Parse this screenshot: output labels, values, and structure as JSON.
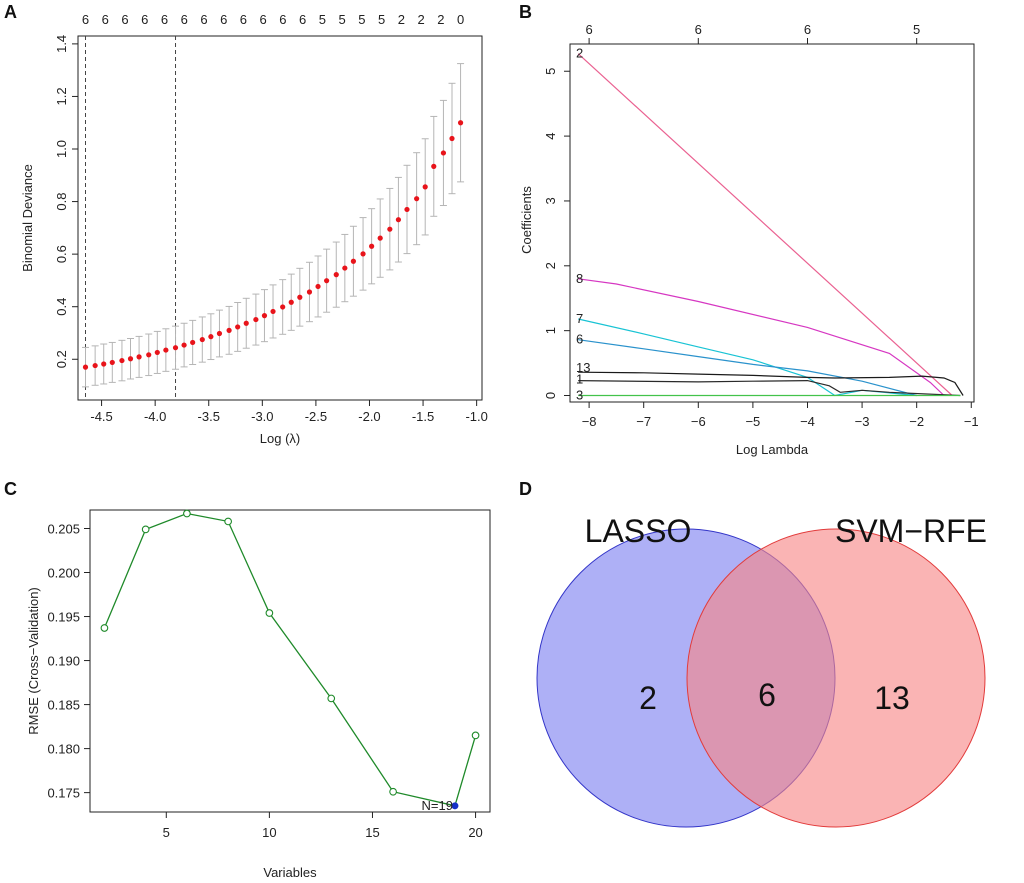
{
  "figure": {
    "panels": [
      "A",
      "B",
      "C",
      "D"
    ]
  },
  "chart_data": [
    {
      "id": "A",
      "type": "scatter",
      "title": "",
      "xlabel": "Log (λ)",
      "ylabel": "Binomial Deviance",
      "xlim": [
        -4.72,
        -0.95
      ],
      "ylim": [
        0.045,
        1.43
      ],
      "xticks": [
        -4.5,
        -4.0,
        -3.5,
        -3.0,
        -2.5,
        -2.0,
        -1.5,
        -1.0
      ],
      "xtick_labels": [
        "-4.5",
        "-4.0",
        "-3.5",
        "-3.0",
        "-2.5",
        "-2.0",
        "-1.5",
        "-1.0"
      ],
      "yticks": [
        0.2,
        0.4,
        0.6,
        0.8,
        1.0,
        1.2,
        1.4
      ],
      "ytick_labels": [
        "0.2",
        "0.4",
        "0.6",
        "0.8",
        "1.0",
        "1.2",
        "1.4"
      ],
      "top_labels": [
        "6",
        "6",
        "6",
        "6",
        "6",
        "6",
        "6",
        "6",
        "6",
        "6",
        "6",
        "6",
        "5",
        "5",
        "5",
        "5",
        "2",
        "2",
        "2",
        "0"
      ],
      "vlines": [
        -4.65,
        -3.81
      ],
      "point_color": "#e8141b",
      "errorbar_color": "#b5b5b5",
      "x": [
        -4.65,
        -4.56,
        -4.48,
        -4.4,
        -4.31,
        -4.23,
        -4.15,
        -4.06,
        -3.98,
        -3.9,
        -3.81,
        -3.73,
        -3.65,
        -3.56,
        -3.48,
        -3.4,
        -3.31,
        -3.23,
        -3.15,
        -3.06,
        -2.98,
        -2.9,
        -2.81,
        -2.73,
        -2.65,
        -2.56,
        -2.48,
        -2.4,
        -2.31,
        -2.23,
        -2.15,
        -2.06,
        -1.98,
        -1.9,
        -1.81,
        -1.73,
        -1.65,
        -1.56,
        -1.48,
        -1.4,
        -1.31,
        -1.23,
        -1.15
      ],
      "y": [
        0.17,
        0.176,
        0.182,
        0.188,
        0.195,
        0.202,
        0.209,
        0.217,
        0.226,
        0.235,
        0.244,
        0.254,
        0.264,
        0.275,
        0.286,
        0.298,
        0.31,
        0.323,
        0.337,
        0.351,
        0.366,
        0.382,
        0.399,
        0.417,
        0.436,
        0.456,
        0.477,
        0.499,
        0.522,
        0.547,
        0.573,
        0.601,
        0.63,
        0.661,
        0.695,
        0.731,
        0.77,
        0.811,
        0.856,
        0.934,
        0.985,
        1.04,
        1.1
      ],
      "err": [
        0.075,
        0.075,
        0.076,
        0.076,
        0.077,
        0.077,
        0.078,
        0.079,
        0.08,
        0.081,
        0.082,
        0.083,
        0.084,
        0.086,
        0.087,
        0.089,
        0.091,
        0.093,
        0.095,
        0.097,
        0.099,
        0.101,
        0.104,
        0.107,
        0.11,
        0.113,
        0.116,
        0.12,
        0.124,
        0.128,
        0.133,
        0.138,
        0.143,
        0.149,
        0.155,
        0.161,
        0.168,
        0.175,
        0.183,
        0.19,
        0.2,
        0.21,
        0.225
      ]
    },
    {
      "id": "B",
      "type": "line",
      "title": "",
      "xlabel": "Log Lambda",
      "ylabel": "Coefficients",
      "xlim": [
        -8.35,
        -0.95
      ],
      "ylim": [
        -0.1,
        5.42
      ],
      "xticks": [
        -8,
        -7,
        -6,
        -5,
        -4,
        -3,
        -2,
        -1
      ],
      "xtick_labels": [
        "−8",
        "−7",
        "−6",
        "−5",
        "−4",
        "−3",
        "−2",
        "−1"
      ],
      "yticks": [
        0,
        1,
        2,
        3,
        4,
        5
      ],
      "ytick_labels": [
        "0",
        "1",
        "2",
        "3",
        "4",
        "5"
      ],
      "top_ticks": [
        -8.0,
        -6.0,
        -4.0,
        -2.0
      ],
      "top_labels": [
        "6",
        "6",
        "6",
        "5"
      ],
      "series": [
        {
          "name": "2",
          "color": "#ea6191",
          "x": [
            -8.2,
            -1.35
          ],
          "y": [
            5.27,
            0.0
          ]
        },
        {
          "name": "8",
          "color": "#d637c2",
          "x": [
            -8.2,
            -7.5,
            -6.0,
            -4.0,
            -2.5,
            -1.75,
            -1.5
          ],
          "y": [
            1.8,
            1.72,
            1.45,
            1.05,
            0.65,
            0.2,
            0.0
          ]
        },
        {
          "name": "7",
          "color": "#18c3d4",
          "x": [
            -8.2,
            -7.0,
            -6.0,
            -5.0,
            -4.0,
            -3.5,
            -3.0,
            -2.0
          ],
          "y": [
            1.18,
            0.95,
            0.75,
            0.55,
            0.28,
            0.0,
            0.08,
            0.0
          ]
        },
        {
          "name": "6",
          "color": "#2a92cc",
          "x": [
            -8.2,
            -7.0,
            -6.0,
            -5.0,
            -4.0,
            -3.0,
            -2.0
          ],
          "y": [
            0.86,
            0.72,
            0.6,
            0.48,
            0.38,
            0.22,
            0.0
          ]
        },
        {
          "name": "13",
          "color": "#1a1a1a",
          "x": [
            -8.2,
            -7.0,
            -6.0,
            -5.0,
            -4.0,
            -3.5,
            -2.5,
            -1.9,
            -1.5,
            -1.3,
            -1.15
          ],
          "y": [
            0.36,
            0.35,
            0.33,
            0.31,
            0.28,
            0.27,
            0.28,
            0.3,
            0.27,
            0.2,
            0.0
          ]
        },
        {
          "name": "1",
          "color": "#2a2a2a",
          "x": [
            -8.2,
            -6.0,
            -5.0,
            -4.0,
            -3.6,
            -3.4,
            -3.0,
            -2.5,
            -1.2
          ],
          "y": [
            0.23,
            0.21,
            0.22,
            0.23,
            0.15,
            0.05,
            0.08,
            0.05,
            0.0
          ]
        },
        {
          "name": "3",
          "color": "#43c34b",
          "x": [
            -8.2,
            -1.2
          ],
          "y": [
            0.0,
            0.0
          ]
        }
      ]
    },
    {
      "id": "C",
      "type": "line",
      "title": "",
      "xlabel": "Variables",
      "ylabel": "RMSE (Cross−Validation)",
      "xlim": [
        1.3,
        20.7
      ],
      "ylim": [
        0.1728,
        0.2071
      ],
      "xticks": [
        5,
        10,
        15,
        20
      ],
      "xtick_labels": [
        "5",
        "10",
        "15",
        "20"
      ],
      "yticks": [
        0.175,
        0.18,
        0.185,
        0.19,
        0.195,
        0.2,
        0.205
      ],
      "ytick_labels": [
        "0.175",
        "0.180",
        "0.185",
        "0.190",
        "0.195",
        "0.200",
        "0.205"
      ],
      "line_color": "#1f8a2a",
      "x": [
        2,
        4,
        6,
        8,
        10,
        13,
        16,
        19,
        20
      ],
      "y": [
        0.1937,
        0.2049,
        0.2067,
        0.2058,
        0.1954,
        0.1857,
        0.1751,
        0.1735,
        0.1815
      ],
      "highlight": {
        "x": 19,
        "y": 0.1735,
        "label": "N=19",
        "color": "#1530c8",
        "label_color": "#e8636a"
      }
    },
    {
      "id": "D",
      "type": "venn",
      "sets": [
        {
          "name": "LASSO",
          "only": "2",
          "fill": "#8f91f2",
          "stroke": "#3335c8"
        },
        {
          "name": "SVM−RFE",
          "only": "13",
          "fill": "#f78686",
          "stroke": "#e23b3b"
        }
      ],
      "intersection": "6"
    }
  ]
}
